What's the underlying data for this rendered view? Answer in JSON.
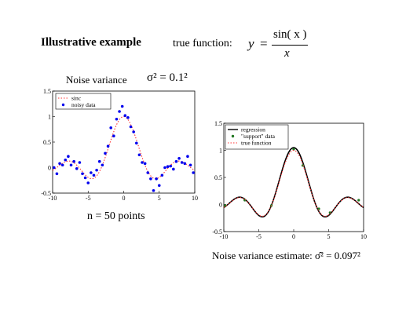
{
  "header": {
    "title": "Illustrative  example",
    "true_function_label": "true function:",
    "formula": {
      "lhs": "y",
      "eq": "=",
      "numerator": "sin( x )",
      "denominator": "x"
    }
  },
  "left_panel": {
    "noise_label": "Noise variance",
    "noise_formula": "σ² = 0.1²",
    "n_label": "n = 50   points"
  },
  "right_panel": {
    "estimate_label": "Noise variance estimate:  σ̂² = 0.097²"
  },
  "colors": {
    "noisy_data": "#0000ee",
    "sinc": "#ff3333",
    "regression": "#000000",
    "support": "#227722"
  },
  "chart_data": [
    {
      "type": "scatter",
      "title": "",
      "xlabel": "",
      "ylabel": "",
      "xlim": [
        -10,
        10
      ],
      "ylim": [
        -0.5,
        1.5
      ],
      "xticks": [
        "-10",
        "-5",
        "0",
        "5",
        "10"
      ],
      "yticks": [
        "-0.5",
        "0",
        "0.5",
        "1",
        "1.5"
      ],
      "legend_position": "top-left",
      "grid": false,
      "series": [
        {
          "name": "sinc",
          "style": "dotted-line",
          "color": "#ff3333",
          "function": "sin(x)/x"
        },
        {
          "name": "noisy data",
          "style": "markers",
          "color": "#0000ee",
          "x": [
            -9.8,
            -9.4,
            -9.0,
            -8.6,
            -8.2,
            -7.8,
            -7.4,
            -7.0,
            -6.6,
            -6.2,
            -5.8,
            -5.4,
            -5.0,
            -4.6,
            -4.2,
            -3.8,
            -3.4,
            -3.0,
            -2.6,
            -2.2,
            -1.8,
            -1.4,
            -1.0,
            -0.6,
            -0.2,
            0.2,
            0.6,
            1.0,
            1.4,
            1.8,
            2.2,
            2.6,
            3.0,
            3.4,
            3.8,
            4.2,
            4.6,
            5.0,
            5.4,
            5.8,
            6.2,
            6.6,
            7.0,
            7.4,
            7.8,
            8.2,
            8.6,
            9.0,
            9.4,
            9.8
          ],
          "y": [
            0.0,
            -0.12,
            0.08,
            0.05,
            0.15,
            0.22,
            0.05,
            0.12,
            -0.02,
            0.1,
            -0.12,
            -0.2,
            -0.3,
            -0.1,
            -0.15,
            -0.05,
            0.12,
            0.05,
            0.28,
            0.42,
            0.78,
            0.62,
            0.95,
            1.1,
            1.2,
            1.02,
            0.98,
            0.8,
            0.7,
            0.48,
            0.25,
            0.1,
            0.08,
            -0.1,
            -0.22,
            -0.45,
            -0.22,
            -0.35,
            -0.15,
            0.0,
            0.02,
            0.03,
            -0.03,
            0.12,
            0.18,
            0.1,
            0.08,
            0.22,
            0.05,
            -0.1
          ]
        }
      ]
    },
    {
      "type": "line",
      "title": "",
      "xlabel": "",
      "ylabel": "",
      "xlim": [
        -10,
        10
      ],
      "ylim": [
        -0.5,
        1.5
      ],
      "xticks": [
        "-10",
        "-5",
        "0",
        "5",
        "10"
      ],
      "yticks": [
        "-0.5",
        "0",
        "0.5",
        "1",
        "1.5"
      ],
      "legend_position": "top-left",
      "grid": false,
      "series": [
        {
          "name": "regression",
          "style": "solid-line",
          "color": "#000000",
          "function": "1.05*sin(x)/x"
        },
        {
          "name": "\"support\" data",
          "style": "markers",
          "color": "#227722",
          "x": [
            -9.8,
            -7.0,
            -3.2,
            0.0,
            1.3,
            3.6,
            5.2,
            9.3
          ],
          "y": [
            -0.02,
            0.08,
            -0.02,
            1.02,
            0.72,
            -0.08,
            -0.15,
            0.08
          ]
        },
        {
          "name": "true function",
          "style": "dotted-line",
          "color": "#ff3333",
          "function": "sin(x)/x"
        }
      ]
    }
  ]
}
